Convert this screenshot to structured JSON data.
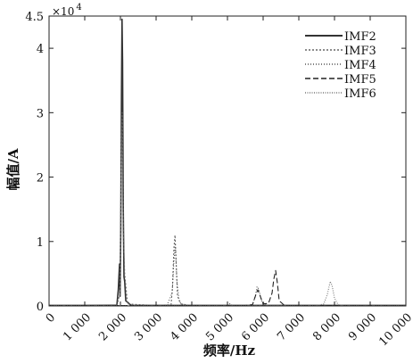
{
  "chart_data": {
    "type": "line",
    "xlabel": "频率/Hz",
    "ylabel": "幅值/A",
    "y_multiplier": "×10 4",
    "xlim": [
      0,
      10000
    ],
    "ylim": [
      0,
      45000
    ],
    "x_ticks": [
      0,
      1000,
      2000,
      3000,
      4000,
      5000,
      6000,
      7000,
      8000,
      9000,
      10000
    ],
    "x_tick_labels": [
      "0",
      "1 000",
      "2 000",
      "3 000",
      "4 000",
      "5 000",
      "6 000",
      "7 000",
      "8 000",
      "9 000",
      "10 000"
    ],
    "y_ticks": [
      0,
      10000,
      20000,
      30000,
      40000,
      45000
    ],
    "y_tick_labels": [
      "0",
      "1",
      "2",
      "3",
      "4",
      "4.5"
    ],
    "legend_position": "top-right",
    "grid": false,
    "series": [
      {
        "name": "IMF2",
        "color": "#333333",
        "dash": "",
        "width": 1.6,
        "points": [
          [
            0,
            80
          ],
          [
            1000,
            80
          ],
          [
            1900,
            100
          ],
          [
            1940,
            2500
          ],
          [
            1975,
            6500
          ],
          [
            1990,
            1500
          ],
          [
            2010,
            12000
          ],
          [
            2030,
            33000
          ],
          [
            2045,
            44500
          ],
          [
            2060,
            38000
          ],
          [
            2080,
            15000
          ],
          [
            2100,
            4500
          ],
          [
            2120,
            3800
          ],
          [
            2150,
            800
          ],
          [
            2300,
            80
          ],
          [
            10000,
            80
          ]
        ]
      },
      {
        "name": "IMF3",
        "color": "#666666",
        "dash": "2,2",
        "width": 1.1,
        "points": [
          [
            0,
            60
          ],
          [
            1900,
            60
          ],
          [
            1990,
            2000
          ],
          [
            2030,
            26000
          ],
          [
            2050,
            30000
          ],
          [
            2080,
            12000
          ],
          [
            2120,
            5000
          ],
          [
            2200,
            300
          ],
          [
            3000,
            60
          ],
          [
            3420,
            200
          ],
          [
            3460,
            3000
          ],
          [
            3500,
            9000
          ],
          [
            3530,
            11000
          ],
          [
            3560,
            7000
          ],
          [
            3600,
            1500
          ],
          [
            3700,
            300
          ],
          [
            4000,
            60
          ],
          [
            10000,
            60
          ]
        ]
      },
      {
        "name": "IMF4",
        "color": "#555555",
        "dash": "1,2",
        "width": 1.1,
        "points": [
          [
            0,
            60
          ],
          [
            3300,
            60
          ],
          [
            3450,
            2000
          ],
          [
            3500,
            7000
          ],
          [
            3540,
            9500
          ],
          [
            3580,
            4000
          ],
          [
            3650,
            600
          ],
          [
            3800,
            60
          ],
          [
            5000,
            60
          ],
          [
            5080,
            400
          ],
          [
            5120,
            60
          ],
          [
            5700,
            100
          ],
          [
            5780,
            1500
          ],
          [
            5830,
            3000
          ],
          [
            5880,
            2600
          ],
          [
            5950,
            800
          ],
          [
            6100,
            60
          ],
          [
            10000,
            60
          ]
        ]
      },
      {
        "name": "IMF5",
        "color": "#222222",
        "dash": "6,3",
        "width": 1.1,
        "points": [
          [
            0,
            50
          ],
          [
            5500,
            50
          ],
          [
            5700,
            200
          ],
          [
            5800,
            1800
          ],
          [
            5850,
            2500
          ],
          [
            5920,
            1500
          ],
          [
            6000,
            300
          ],
          [
            6150,
            400
          ],
          [
            6250,
            2000
          ],
          [
            6300,
            4200
          ],
          [
            6350,
            5500
          ],
          [
            6400,
            3500
          ],
          [
            6450,
            800
          ],
          [
            6600,
            60
          ],
          [
            10000,
            50
          ]
        ]
      },
      {
        "name": "IMF6",
        "color": "#777777",
        "dash": "1,1.5",
        "width": 1.1,
        "points": [
          [
            0,
            40
          ],
          [
            7500,
            40
          ],
          [
            7700,
            300
          ],
          [
            7800,
            1800
          ],
          [
            7880,
            3800
          ],
          [
            7930,
            3200
          ],
          [
            8000,
            1200
          ],
          [
            8100,
            200
          ],
          [
            8300,
            40
          ],
          [
            10000,
            40
          ]
        ]
      }
    ]
  }
}
